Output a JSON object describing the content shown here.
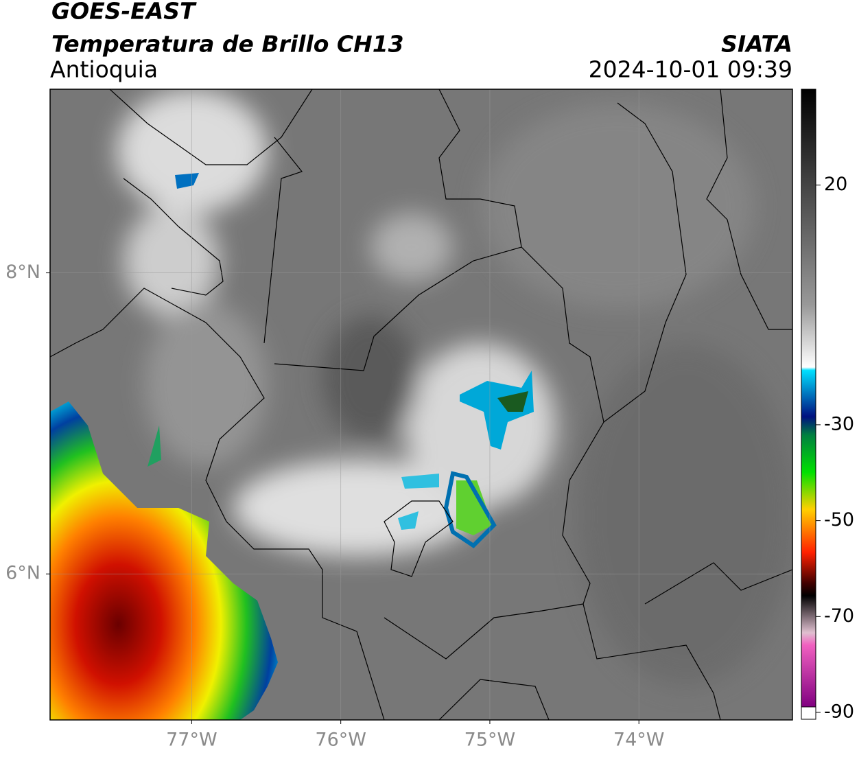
{
  "header": {
    "satellite": "GOES-EAST",
    "product": "Temperatura de Brillo CH13",
    "region": "Antioquia",
    "agency": "SIATA",
    "datetime": "2024-10-01 09:39"
  },
  "map": {
    "xlim": [
      -77.95,
      -72.97
    ],
    "ylim": [
      5.03,
      9.22
    ],
    "xticks": [
      {
        "value": -77,
        "label": "77°W"
      },
      {
        "value": -76,
        "label": "76°W"
      },
      {
        "value": -75,
        "label": "75°W"
      },
      {
        "value": -74,
        "label": "74°W"
      }
    ],
    "yticks": [
      {
        "value": 6,
        "label": "6°N"
      },
      {
        "value": 8,
        "label": "8°N"
      }
    ]
  },
  "colorbar": {
    "clim": [
      -90,
      40
    ],
    "ticks": [
      20,
      -30,
      -50,
      -70,
      -90
    ]
  }
}
